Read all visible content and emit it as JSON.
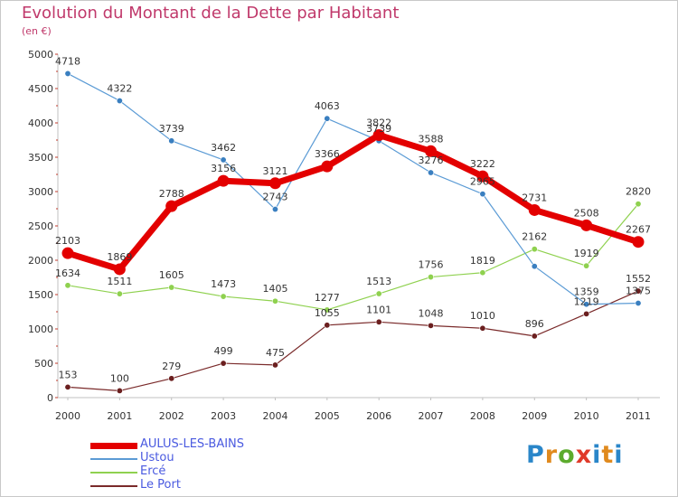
{
  "title": "Evolution du Montant de la Dette par Habitant",
  "subtitle": "(en €)",
  "logo": "Proxiti",
  "chart_data": {
    "type": "line",
    "categories": [
      "2000",
      "2001",
      "2002",
      "2003",
      "2004",
      "2005",
      "2006",
      "2007",
      "2008",
      "2009",
      "2010",
      "2011"
    ],
    "ylim": [
      0,
      5000
    ],
    "yticks": [
      "0",
      "500",
      "1000",
      "1500",
      "2000",
      "2500",
      "3000",
      "3500",
      "4000",
      "4500",
      "5000"
    ],
    "grid": false,
    "legend_position": "bottom-left",
    "series": [
      {
        "name": "AULUS-LES-BAINS",
        "color": "#e30000",
        "values": [
          2103,
          1869,
          2788,
          3156,
          3121,
          3366,
          3822,
          3588,
          3222,
          2731,
          2508,
          2267
        ],
        "labels": [
          "2103",
          "1869",
          "2788",
          "3156",
          "3121",
          "3366",
          "3822",
          "3588",
          "3222",
          "2731",
          "2508",
          "2267"
        ]
      },
      {
        "name": "Ustou",
        "color": "#5b9bd5",
        "values": [
          4718,
          4322,
          3739,
          3462,
          2743,
          4063,
          3739,
          3276,
          2965,
          1912,
          1359,
          1375
        ],
        "labels": [
          "4718",
          "4322",
          "3739",
          "3462",
          "2743",
          "4063",
          "3739",
          "3276",
          "2965",
          "",
          "1359",
          "1375"
        ]
      },
      {
        "name": "Ercé",
        "color": "#8fd14f",
        "values": [
          1634,
          1511,
          1605,
          1473,
          1405,
          1277,
          1513,
          1756,
          1819,
          2162,
          1919,
          2820
        ],
        "labels": [
          "1634",
          "1511",
          "1605",
          "1473",
          "1405",
          "1277",
          "1513",
          "1756",
          "1819",
          "2162",
          "1919",
          "2820"
        ]
      },
      {
        "name": "Le Port",
        "color": "#7a2a2a",
        "values": [
          153,
          100,
          279,
          499,
          475,
          1055,
          1101,
          1048,
          1010,
          896,
          1219,
          1552
        ],
        "labels": [
          "153",
          "100",
          "279",
          "499",
          "475",
          "1055",
          "1101",
          "1048",
          "1010",
          "896",
          "1219",
          "1552"
        ]
      }
    ]
  }
}
